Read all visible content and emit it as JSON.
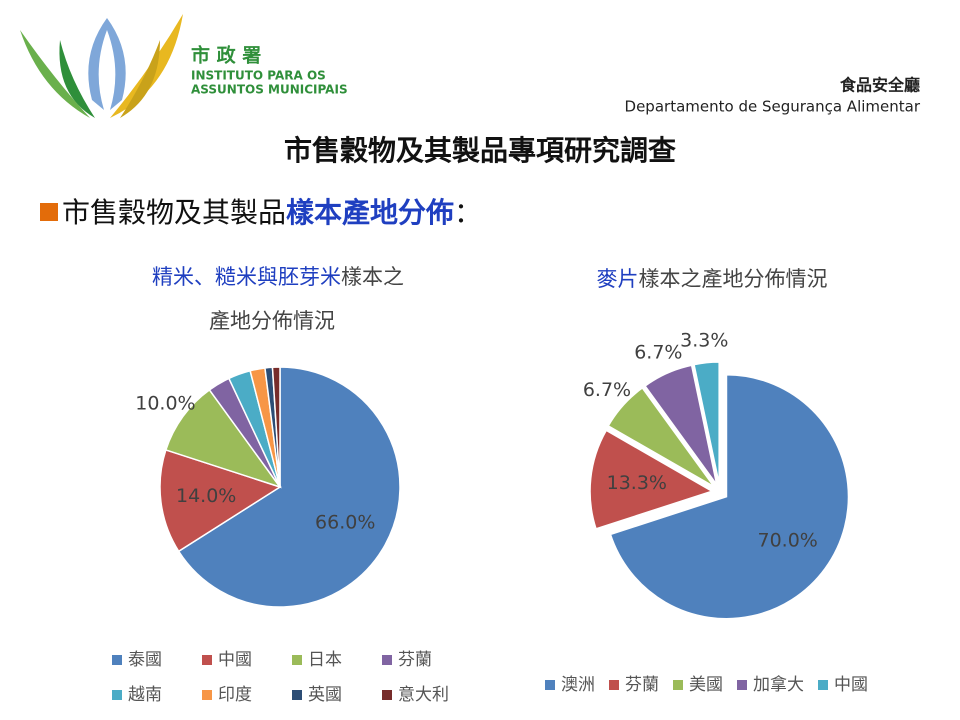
{
  "header": {
    "logo_name": "市 政 署",
    "logo_line1": "INSTITUTO PARA OS",
    "logo_line2": "ASSUNTOS MUNICIPAIS",
    "dept_zh": "食品安全廳",
    "dept_pt": "Departamento de Segurança Alimentar"
  },
  "slide_title": "市售穀物及其製品專項研究調查",
  "subheading": [
    "市售穀物及其製品",
    "樣本產地分佈",
    "："
  ],
  "chart_data": [
    {
      "type": "pie",
      "title": [
        "精米、糙米與胚芽米",
        "樣本之",
        "產地分佈情況"
      ],
      "categories": [
        "泰國",
        "中國",
        "日本",
        "芬蘭",
        "越南",
        "印度",
        "英國",
        "意大利"
      ],
      "values": [
        66,
        14,
        10,
        3,
        3,
        2,
        1,
        1
      ],
      "value_labels": [
        "66.0%",
        "14.0%",
        "10.0%",
        null,
        null,
        null,
        null,
        null
      ],
      "colors": [
        "#4f81bd",
        "#c0504d",
        "#9bbb59",
        "#8064a2",
        "#4bacc6",
        "#f79646",
        "#2c4d75",
        "#772c2a"
      ]
    },
    {
      "type": "pie",
      "title": [
        "麥片",
        "樣本之產地分佈情況"
      ],
      "exploded": true,
      "categories": [
        "澳洲",
        "芬蘭",
        "美國",
        "加拿大",
        "中國"
      ],
      "values": [
        70,
        13.3,
        6.7,
        6.7,
        3.3
      ],
      "value_labels": [
        "70.0%",
        "13.3%",
        "6.7%",
        "6.7%",
        "3.3%"
      ],
      "colors": [
        "#4f81bd",
        "#c0504d",
        "#9bbb59",
        "#8064a2",
        "#4bacc6"
      ]
    }
  ]
}
